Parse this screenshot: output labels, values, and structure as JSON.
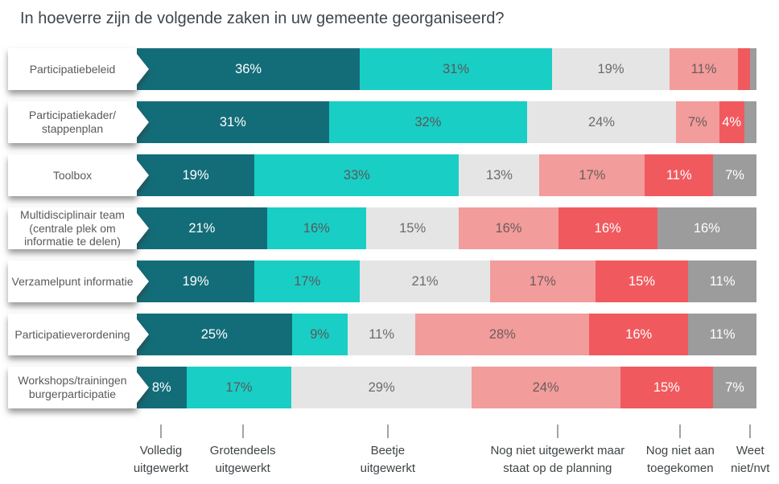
{
  "title": "In hoeverre zijn de volgende zaken in uw gemeente georganiseerd?",
  "chart_data": {
    "type": "bar",
    "orientation": "horizontal-stacked",
    "unit": "%",
    "grid": false,
    "xlim": [
      0,
      100
    ],
    "colors": [
      "#136D79",
      "#19CEC4",
      "#E6E5E5",
      "#F29C9C",
      "#F05A5E",
      "#9C9C9C"
    ],
    "value_label_colors": [
      "#FFFFFF",
      "#58595B",
      "#6B6B6B",
      "#6E5B5C",
      "#FFFFFF",
      "#FFFFFF"
    ],
    "series_names": [
      "Volledig uitgewerkt",
      "Grotendeels uitgewerkt",
      "Beetje uitgewerkt",
      "Nog niet uitgewerkt maar staat op de planning",
      "Nog niet aan toegekomen",
      "Weet niet/nvt"
    ],
    "rows": [
      {
        "label_lines": [
          "Participatiebeleid"
        ],
        "values": [
          36,
          31,
          19,
          11,
          2,
          1
        ],
        "labels": [
          "36%",
          "31%",
          "19%",
          "11%",
          "",
          ""
        ]
      },
      {
        "label_lines": [
          "Participatiekader/",
          "stappenplan"
        ],
        "values": [
          31,
          32,
          24,
          7,
          4,
          2
        ],
        "labels": [
          "31%",
          "32%",
          "24%",
          "7%",
          "4%",
          ""
        ]
      },
      {
        "label_lines": [
          "Toolbox"
        ],
        "values": [
          19,
          33,
          13,
          17,
          11,
          7
        ],
        "labels": [
          "19%",
          "33%",
          "13%",
          "17%",
          "11%",
          "7%"
        ]
      },
      {
        "label_lines": [
          "Multidisciplinair team",
          "(centrale plek om",
          "informatie te delen)"
        ],
        "values": [
          21,
          16,
          15,
          16,
          16,
          16
        ],
        "labels": [
          "21%",
          "16%",
          "15%",
          "16%",
          "16%",
          "16%"
        ]
      },
      {
        "label_lines": [
          "Verzamelpunt informatie"
        ],
        "values": [
          19,
          17,
          21,
          17,
          15,
          11
        ],
        "labels": [
          "19%",
          "17%",
          "21%",
          "17%",
          "15%",
          "11%"
        ]
      },
      {
        "label_lines": [
          "Participatieverordening"
        ],
        "values": [
          25,
          9,
          11,
          28,
          16,
          11
        ],
        "labels": [
          "25%",
          "9%",
          "11%",
          "28%",
          "16%",
          "11%"
        ]
      },
      {
        "label_lines": [
          "Workshops/trainingen",
          "burgerparticipatie"
        ],
        "values": [
          8,
          17,
          29,
          24,
          15,
          7
        ],
        "labels": [
          "8%",
          "17%",
          "29%",
          "24%",
          "15%",
          "7%"
        ]
      }
    ],
    "legend": [
      {
        "lines": [
          "Volledig",
          "uitgewerkt"
        ],
        "x_pct": 3.9
      },
      {
        "lines": [
          "Grotendeels",
          "uitgewerkt"
        ],
        "x_pct": 17.1
      },
      {
        "lines": [
          "Beetje",
          "uitgewerkt"
        ],
        "x_pct": 40.5
      },
      {
        "lines": [
          "Nog niet uitgewerkt maar",
          "staat op de planning"
        ],
        "x_pct": 67.9
      },
      {
        "lines": [
          "Nog niet aan",
          "toegekomen"
        ],
        "x_pct": 87.7
      },
      {
        "lines": [
          "Weet",
          "niet/nvt"
        ],
        "x_pct": 99.0
      }
    ]
  }
}
